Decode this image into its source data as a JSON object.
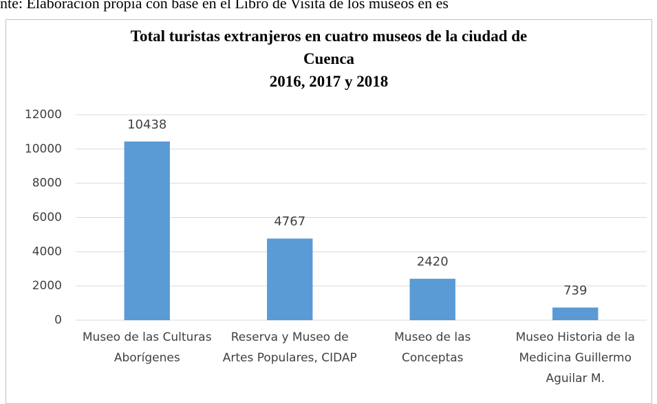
{
  "caption": "nte: Elaboración propia con base en el Libro de Visita de los museos en es",
  "chart_data": {
    "type": "bar",
    "title": "Total  turistas extranjeros en cuatro museos de la ciudad de\nCuenca\n2016, 2017 y 2018",
    "categories": [
      "Museo de las Culturas Aborígenes",
      "Reserva y Museo de Artes Populares, CIDAP",
      "Museo de las Conceptas",
      "Museo Historia de la Medicina Guillermo Aguilar M."
    ],
    "values": [
      10438,
      4767,
      2420,
      739
    ],
    "color": "#5b9bd5",
    "ylim": [
      0,
      12000
    ],
    "yticks": [
      0,
      2000,
      4000,
      6000,
      8000,
      10000,
      12000
    ],
    "grid": true
  }
}
